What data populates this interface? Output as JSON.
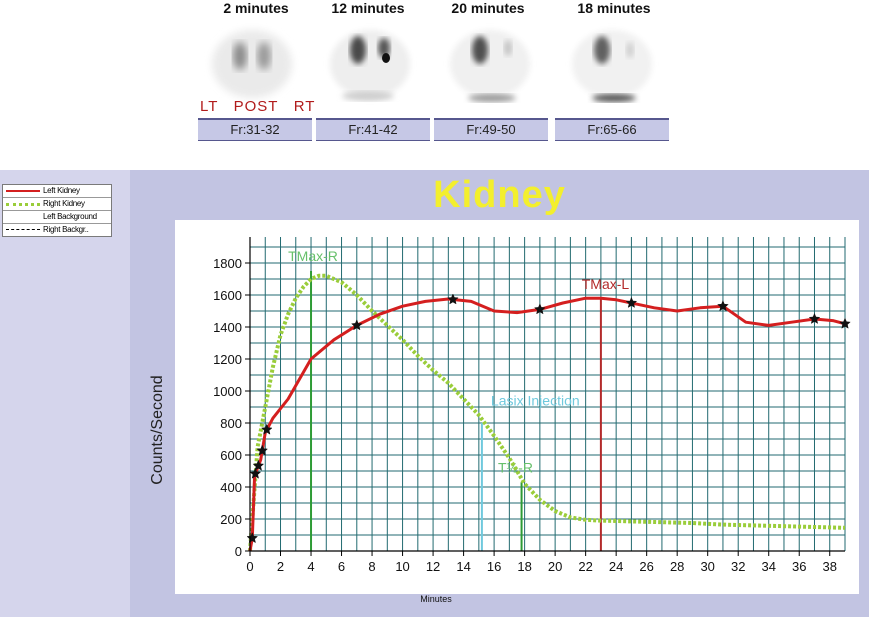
{
  "frames": [
    {
      "label": "2 minutes",
      "frame": "Fr:31-32"
    },
    {
      "label": "12 minutes",
      "frame": "Fr:41-42"
    },
    {
      "label": "20 minutes",
      "frame": "Fr:49-50"
    },
    {
      "label": "18 minutes",
      "frame": "Fr:65-66"
    }
  ],
  "orientation_label": "LT   POST   RT",
  "legend": [
    {
      "name": "Left Kidney",
      "color": "#d41f1f",
      "style": "solid"
    },
    {
      "name": "Right Kidney",
      "color": "#9acd3a",
      "style": "dotted"
    },
    {
      "name": "Left Background",
      "color": "#000000",
      "style": "none"
    },
    {
      "name": "Right Backgr..",
      "color": "#000000",
      "style": "dashed"
    }
  ],
  "chart_data": {
    "type": "line",
    "title": "Kidney",
    "xlabel": "Minutes",
    "ylabel": "Counts/Second",
    "xlim": [
      0,
      39
    ],
    "ylim": [
      0,
      1900
    ],
    "xticks": [
      0,
      2,
      4,
      6,
      8,
      10,
      12,
      14,
      16,
      18,
      20,
      22,
      24,
      26,
      28,
      30,
      32,
      34,
      36,
      38
    ],
    "yticks": [
      0,
      200,
      400,
      600,
      800,
      1000,
      1200,
      1400,
      1600,
      1800
    ],
    "grid": true,
    "series": [
      {
        "name": "Left Kidney",
        "color": "#d41f1f",
        "x": [
          0,
          0.15,
          0.3,
          0.5,
          0.7,
          1.0,
          1.5,
          2.5,
          4.0,
          5.5,
          7.0,
          8.5,
          10.0,
          11.5,
          13.0,
          14.5,
          16.0,
          17.5,
          19.0,
          20.5,
          22.0,
          23.0,
          24.0,
          25.0,
          26.5,
          28.0,
          29.5,
          31.0,
          32.5,
          34.0,
          35.5,
          37.0,
          38.2,
          39.0
        ],
        "y": [
          0,
          80,
          470,
          520,
          570,
          740,
          830,
          950,
          1200,
          1320,
          1410,
          1480,
          1530,
          1560,
          1575,
          1560,
          1500,
          1490,
          1510,
          1550,
          1580,
          1580,
          1570,
          1550,
          1520,
          1500,
          1520,
          1530,
          1430,
          1410,
          1430,
          1450,
          1440,
          1420
        ],
        "marker_x": [
          0.15,
          0.35,
          0.55,
          0.8,
          1.1,
          7.0,
          13.3,
          19.0,
          25.0,
          31.0,
          37.0,
          39.0
        ]
      },
      {
        "name": "Right Kidney",
        "color": "#9acd3a",
        "x": [
          0,
          0.5,
          1.0,
          1.5,
          2.0,
          2.5,
          3.0,
          3.5,
          4.0,
          4.5,
          5.0,
          5.5,
          6.0,
          7.0,
          8.0,
          9.0,
          10.0,
          11.0,
          12.0,
          13.0,
          14.0,
          15.0,
          16.0,
          17.0,
          18.0,
          19.0,
          20.0,
          21.0,
          22.0,
          23.0,
          25.0,
          27.0,
          29.0,
          31.0,
          33.0,
          35.0,
          37.0,
          39.0
        ],
        "y": [
          0,
          650,
          900,
          1150,
          1350,
          1480,
          1580,
          1650,
          1700,
          1720,
          1720,
          1700,
          1680,
          1600,
          1500,
          1410,
          1320,
          1220,
          1130,
          1050,
          950,
          850,
          720,
          580,
          420,
          320,
          250,
          210,
          195,
          190,
          185,
          180,
          175,
          165,
          160,
          155,
          150,
          145
        ]
      },
      {
        "name": "Left Background",
        "color": "#000000",
        "x": [
          0,
          39
        ],
        "y": [
          0,
          0
        ]
      },
      {
        "name": "Right Backgr..",
        "color": "#000000",
        "x": [
          0,
          39
        ],
        "y": [
          0,
          0
        ]
      }
    ],
    "markers": [
      {
        "label": "TMax-R",
        "x": 4.0,
        "y_top": 1750,
        "color": "#2e9b35",
        "label_color": "#67c06b"
      },
      {
        "label": "TMax-L",
        "x": 23.0,
        "y_top": 1580,
        "color": "#b32a2a",
        "label_color": "#b32a2a"
      },
      {
        "label": "Lasix Injection",
        "x": 15.2,
        "y_top": 800,
        "color": "#6fc9dd",
        "label_color": "#6fc9dd"
      },
      {
        "label": "T½-R",
        "x": 17.8,
        "y_top": 430,
        "color": "#2e9b35",
        "label_color": "#67c06b"
      }
    ]
  }
}
